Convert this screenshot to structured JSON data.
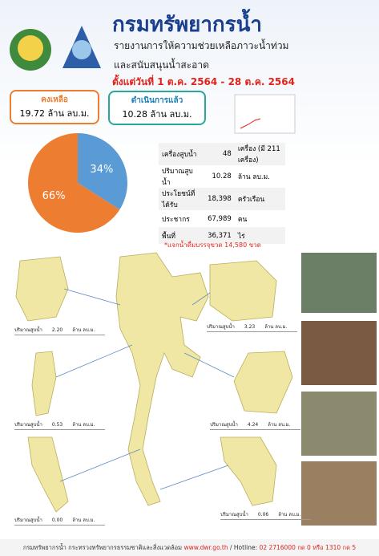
{
  "header": {
    "title": "กรมทรัพยากรน้ำ",
    "subtitle": [
      "รายงานการให้ความช่วยเหลือภาวะน้ำท่วม",
      "และสนับสนุนน้ำสะอาด"
    ],
    "date": "ตั้งแต่วันที่ 1 ต.ค. 2564 - 28 ต.ค. 2564"
  },
  "chart_data": {
    "type": "pie",
    "categories": [
      "ดำเนินการแล้ว",
      "คงเหลือ"
    ],
    "values": [
      34,
      66
    ],
    "value_labels": [
      "34%",
      "66%"
    ],
    "colors": [
      "#5b9bd5",
      "#ed7d31"
    ]
  },
  "callouts": [
    "10.28 ล้าน ลบ.ม.",
    "19.72 ล้าน ลบ.ม."
  ],
  "table": {
    "rows": [
      [
        "เครื่องสูบน้ำ",
        "48",
        "เครื่อง (มี 211 เครื่อง)"
      ],
      [
        "ปริมาณสูบน้ำ",
        "10.28",
        "ล้าน ลบ.ม."
      ],
      [
        "ประโยชน์ที่ได้รับ",
        "18,398",
        "ครัวเรือน"
      ],
      [
        "ประชากร",
        "67,989",
        "คน"
      ],
      [
        "พื้นที่",
        "36,371",
        "ไร่"
      ]
    ]
  },
  "note": "*แจกน้ำดื่มบรรจุขวด 14,580 ขวด",
  "regions": [
    {
      "label": "ปริมาณสูบน้ำ",
      "value": "2.20",
      "unit": "ล้าน ลบ.ม."
    },
    {
      "label": "ปริมาณสูบน้ำ",
      "value": "3.23",
      "unit": "ล้าน ลบ.ม."
    },
    {
      "label": "ปริมาณสูบน้ำ",
      "value": "0.53",
      "unit": "ล้าน ลบ.ม."
    },
    {
      "label": "ปริมาณสูบน้ำ",
      "value": "4.24",
      "unit": "ล้าน ลบ.ม."
    },
    {
      "label": "ปริมาณสูบน้ำ",
      "value": "0.00",
      "unit": "ล้าน ลบ.ม."
    },
    {
      "label": "ปริมาณสูบน้ำ",
      "value": "0.06",
      "unit": "ล้าน ลบ.ม."
    }
  ],
  "footer": {
    "org": "กรมทรัพยากรน้ำ กระทรวงทรัพยากรธรรมชาติและสิ่งแวดล้อม",
    "web": "www.dwr.go.th",
    "hotline": "/ Hotline:",
    "phone": "02 2716000 กด 0 หรือ 1310 กด 5"
  }
}
